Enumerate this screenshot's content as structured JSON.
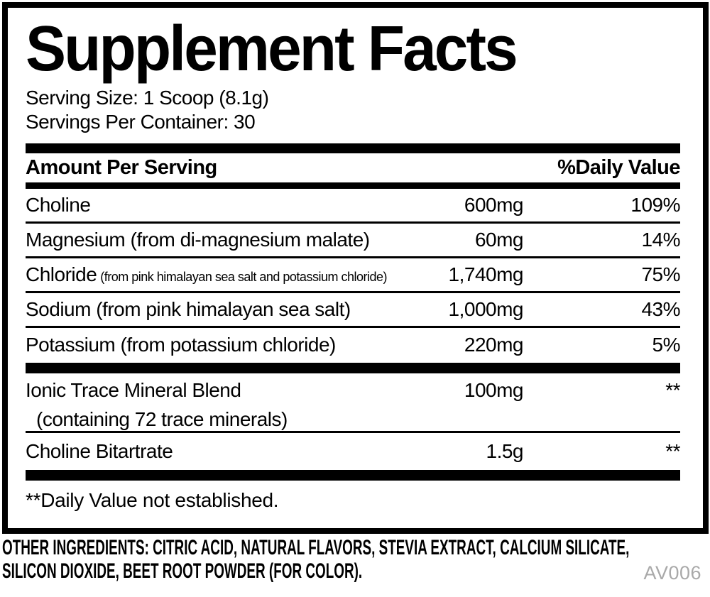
{
  "panel": {
    "title": "Supplement Facts",
    "serving_size": "Serving Size: 1 Scoop (8.1g)",
    "servings_per_container": "Servings Per Container: 30",
    "header": {
      "amount": "Amount Per Serving",
      "daily_value": "%Daily Value"
    },
    "nutrients": [
      {
        "name": "Choline",
        "note": "",
        "sub": "",
        "amount": "600mg",
        "dv": "109%",
        "separator_after": "thin",
        "tall": false
      },
      {
        "name": "Magnesium (from di-magnesium malate)",
        "note": "",
        "sub": "",
        "amount": "60mg",
        "dv": "14%",
        "separator_after": "thin",
        "tall": false
      },
      {
        "name": "Chloride",
        "note": "(from pink himalayan sea salt and potassium chloride)",
        "sub": "",
        "amount": "1,740mg",
        "dv": "75%",
        "separator_after": "thin",
        "tall": false
      },
      {
        "name": "Sodium (from pink himalayan sea salt)",
        "note": "",
        "sub": "",
        "amount": "1,000mg",
        "dv": "43%",
        "separator_after": "thin",
        "tall": false
      },
      {
        "name": "Potassium (from potassium chloride)",
        "note": "",
        "sub": "",
        "amount": "220mg",
        "dv": "5%",
        "separator_after": "thick",
        "tall": false
      },
      {
        "name": "Ionic Trace Mineral Blend",
        "note": "",
        "sub": "(containing 72 trace minerals)",
        "amount": "100mg",
        "dv": "**",
        "separator_after": "thin",
        "tall": true
      },
      {
        "name": "Choline Bitartrate",
        "note": "",
        "sub": "",
        "amount": "1.5g",
        "dv": "**",
        "separator_after": "thick",
        "tall": false
      }
    ],
    "footnote": "**Daily Value not established."
  },
  "footer": {
    "other_ingredients_lines": [
      "OTHER INGREDIENTS: CITRIC ACID, NATURAL FLAVORS, STEVIA EXTRACT, CALCIUM SILICATE,",
      "SILICON DIOXIDE, BEET ROOT POWDER (FOR COLOR)."
    ],
    "code": "AV006"
  },
  "colors": {
    "ink": "#000000",
    "muted_gray": "#a9a9a9",
    "background": "#ffffff"
  }
}
